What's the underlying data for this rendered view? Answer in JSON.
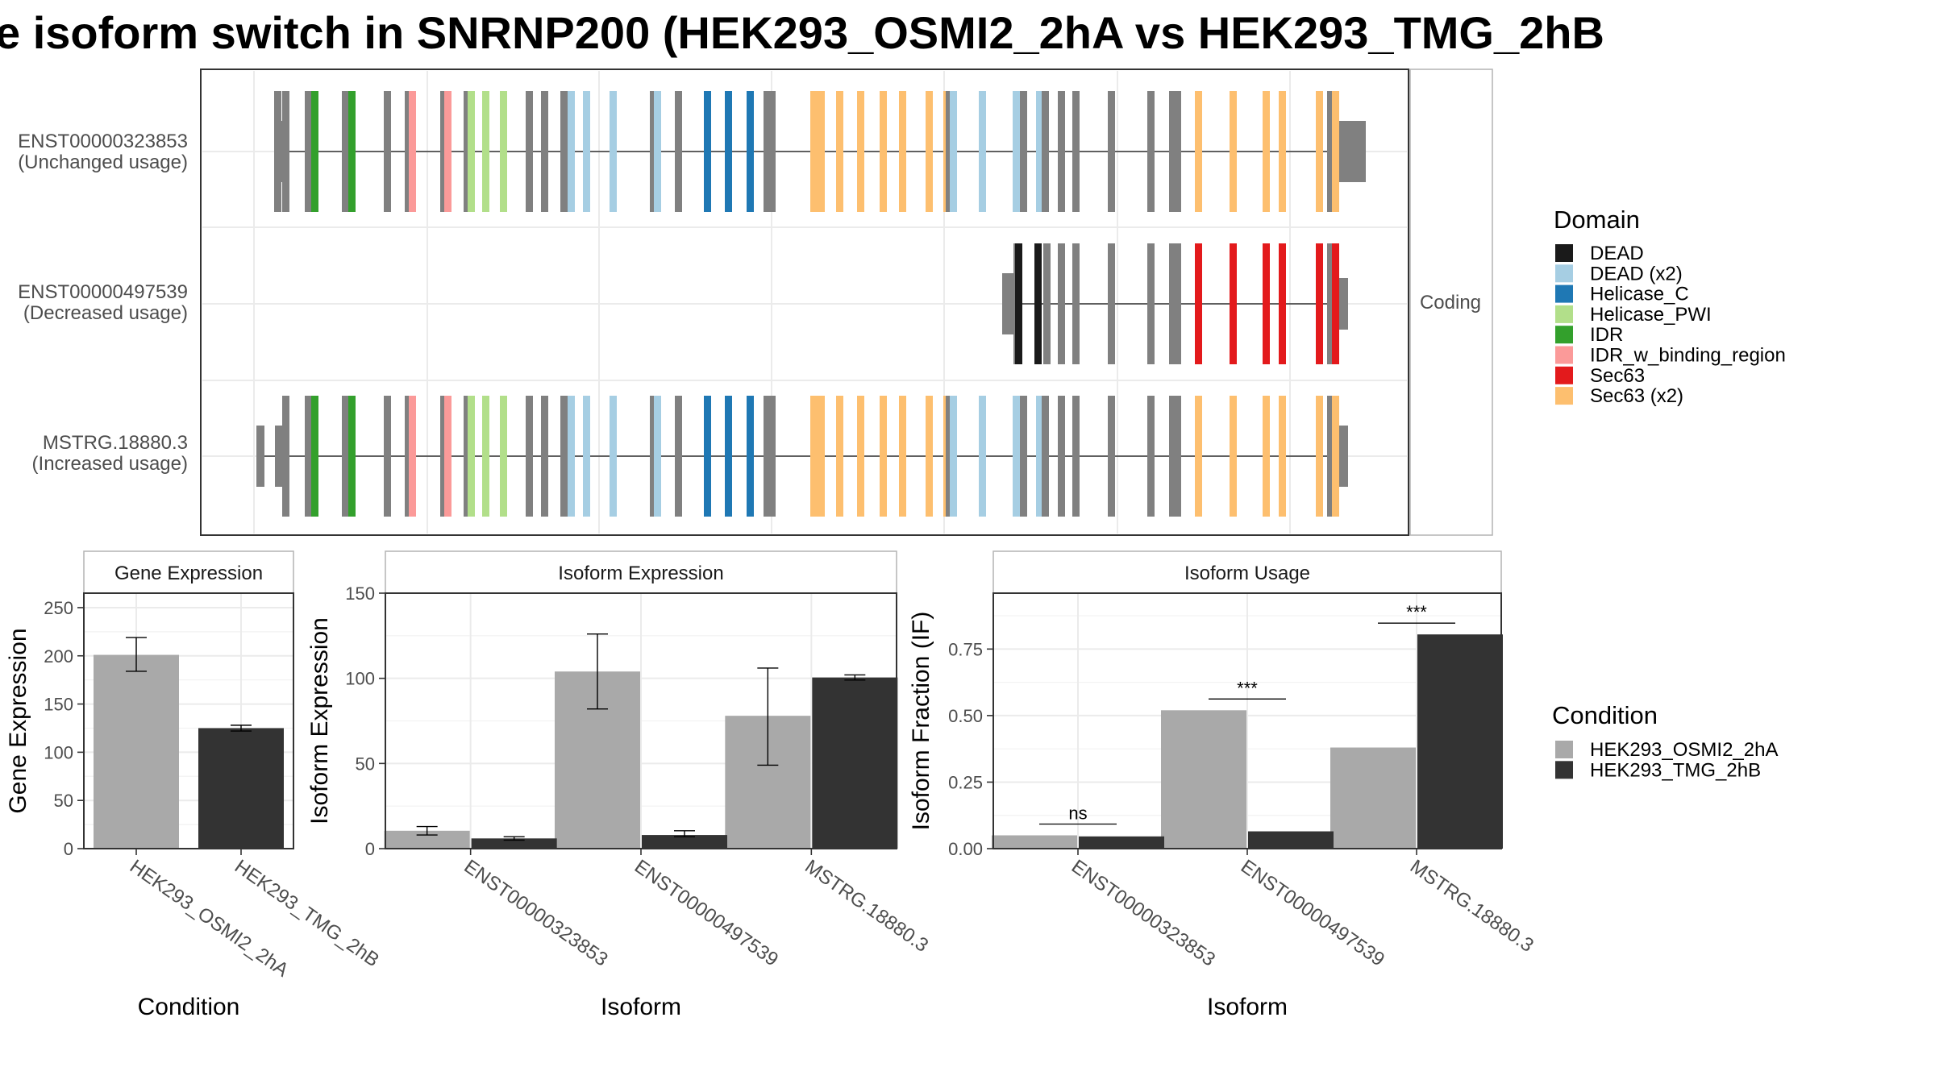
{
  "title": "e isoform switch in SNRNP200 (HEK293_OSMI2_2hA vs HEK293_TMG_2hB",
  "colors": {
    "exon": "#808080",
    "HEK293_OSMI2_2hA": "#A9A9A9",
    "HEK293_TMG_2hB": "#333333",
    "grid": "#EBEBEB",
    "panel_border": "#333333"
  },
  "structure": {
    "facet_label": "Coding",
    "isoforms": [
      {
        "id": "ENST00000323853",
        "usage": "(Unchanged usage)"
      },
      {
        "id": "ENST00000497539",
        "usage": "(Decreased usage)"
      },
      {
        "id": "MSTRG.18880.3",
        "usage": "(Increased usage)"
      }
    ]
  },
  "legend_domain": {
    "title": "Domain",
    "items": [
      {
        "label": "DEAD",
        "color": "#1A1A1A"
      },
      {
        "label": "DEAD (x2)",
        "color": "#A6CEE3"
      },
      {
        "label": "Helicase_C",
        "color": "#1F78B4"
      },
      {
        "label": "Helicase_PWI",
        "color": "#B2DF8A"
      },
      {
        "label": "IDR",
        "color": "#33A02C"
      },
      {
        "label": "IDR_w_binding_region",
        "color": "#FB9A99"
      },
      {
        "label": "Sec63",
        "color": "#E31A1C"
      },
      {
        "label": "Sec63 (x2)",
        "color": "#FDBF6F"
      }
    ]
  },
  "legend_condition": {
    "title": "Condition",
    "items": [
      {
        "label": "HEK293_OSMI2_2hA",
        "color": "#A9A9A9"
      },
      {
        "label": "HEK293_TMG_2hB",
        "color": "#333333"
      }
    ]
  },
  "chart_data": [
    {
      "type": "bar",
      "panel": "Gene Expression",
      "xlabel": "Condition",
      "ylabel": "Gene Expression",
      "ylim": [
        0,
        265
      ],
      "yticks": [
        0,
        50,
        100,
        150,
        200,
        250
      ],
      "categories": [
        "HEK293_OSMI2_2hA",
        "HEK293_TMG_2hB"
      ],
      "values": [
        201,
        125
      ],
      "error": [
        [
          184,
          219
        ],
        [
          122,
          128
        ]
      ]
    },
    {
      "type": "bar",
      "panel": "Isoform Expression",
      "xlabel": "Isoform",
      "ylabel": "Isoform Expression",
      "ylim": [
        0,
        150
      ],
      "yticks": [
        0,
        50,
        100,
        150
      ],
      "categories": [
        "ENST00000323853",
        "ENST00000497539",
        "MSTRG.18880.3"
      ],
      "series": [
        {
          "name": "HEK293_OSMI2_2hA",
          "values": [
            10.5,
            104,
            78
          ],
          "error": [
            [
              8,
              13
            ],
            [
              82,
              126
            ],
            [
              49,
              106
            ]
          ]
        },
        {
          "name": "HEK293_TMG_2hB",
          "values": [
            6,
            8,
            100.5
          ],
          "error": [
            [
              5,
              7
            ],
            [
              7,
              10.5
            ],
            [
              99,
              102
            ]
          ]
        }
      ]
    },
    {
      "type": "bar",
      "panel": "Isoform Usage",
      "xlabel": "Isoform",
      "ylabel": "Isoform Fraction (IF)",
      "ylim": [
        0,
        0.96
      ],
      "yticks": [
        0.0,
        0.25,
        0.5,
        0.75
      ],
      "ytick_labels": [
        "0.00",
        "0.25",
        "0.50",
        "0.75"
      ],
      "categories": [
        "ENST00000323853",
        "ENST00000497539",
        "MSTRG.18880.3"
      ],
      "series": [
        {
          "name": "HEK293_OSMI2_2hA",
          "values": [
            0.05,
            0.52,
            0.38
          ]
        },
        {
          "name": "HEK293_TMG_2hB",
          "values": [
            0.046,
            0.065,
            0.805
          ]
        }
      ],
      "significance": [
        "ns",
        "***",
        "***"
      ]
    }
  ]
}
